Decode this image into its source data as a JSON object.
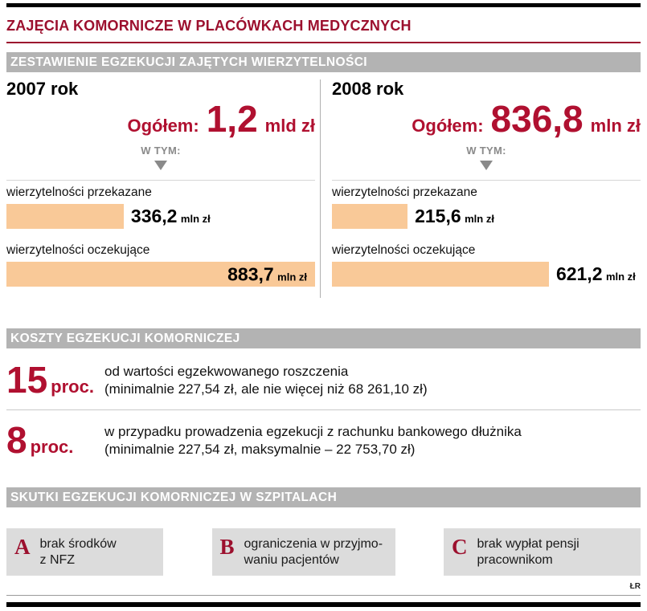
{
  "page": {
    "title": "ZAJĘCIA KOMORNICZE W PLACÓWKACH MEDYCZNYCH",
    "credit": "ŁR"
  },
  "colors": {
    "title_red": "#9c102e",
    "number_red": "#b01030",
    "banner_gray": "#b3b3b3",
    "bar_orange": "#f9c998",
    "box_gray": "#dcdcdc"
  },
  "sections": {
    "zestawienie": {
      "banner": "ZESTAWIENIE EGZEKUCJI ZAJĘTYCH WIERZYTELNOŚCI",
      "w_tym_label": "W TYM:",
      "columns": [
        {
          "year": "2007 rok",
          "total_label": "Ogółem:",
          "total_value": "1,2",
          "total_unit": "mld zł",
          "bars": [
            {
              "label": "wierzytelności przekazane",
              "value": "336,2",
              "unit": "mln zł",
              "pct": 38
            },
            {
              "label": "wierzytelności oczekujące",
              "value": "883,7",
              "unit": "mln zł",
              "pct": 100
            }
          ]
        },
        {
          "year": "2008 rok",
          "total_label": "Ogółem:",
          "total_value": "836,8",
          "total_unit": "mln zł",
          "bars": [
            {
              "label": "wierzytelności przekazane",
              "value": "215,6",
              "unit": "mln zł",
              "pct": 24.5
            },
            {
              "label": "wierzytelności oczekujące",
              "value": "621,2",
              "unit": "mln zł",
              "pct": 70.3
            }
          ]
        }
      ]
    },
    "koszty": {
      "banner": "KOSZTY EGZEKUCJI KOMORNICZEJ",
      "rows": [
        {
          "value": "15",
          "unit": "proc.",
          "line1": "od wartości egzekwowanego roszczenia",
          "line2": "(minimalnie 227,54 zł, ale nie więcej niż 68 261,10 zł)"
        },
        {
          "value": "8",
          "unit": "proc.",
          "line1": "w przypadku prowadzenia egzekucji z rachunku bankowego dłużnika",
          "line2": "(minimalnie 227,54 zł, maksymalnie – 22 753,70 zł)"
        }
      ]
    },
    "skutki": {
      "banner": "SKUTKI EGZEKUCJI KOMORNICZEJ W SZPITALACH",
      "items": [
        {
          "letter": "A",
          "text": "brak środków\nz NFZ"
        },
        {
          "letter": "B",
          "text": "ograniczenia w przyjmo-\nwaniu pacjentów"
        },
        {
          "letter": "C",
          "text": "brak wypłat pensji\npracownikom"
        }
      ]
    }
  },
  "chart_data": {
    "type": "bar",
    "title": "ZESTAWIENIE EGZEKUCJI ZAJĘTYCH WIERZYTELNOŚCI",
    "categories": [
      "wierzytelności przekazane",
      "wierzytelności oczekujące"
    ],
    "series": [
      {
        "name": "2007 rok",
        "values": [
          336.2,
          883.7
        ],
        "total_label": "Ogółem: 1,2 mld zł",
        "total_mln_zl": 1200
      },
      {
        "name": "2008 rok",
        "values": [
          215.6,
          621.2
        ],
        "total_label": "Ogółem: 836,8 mln zł",
        "total_mln_zl": 836.8
      }
    ],
    "unit": "mln zł",
    "xlim": [
      0,
      883.7
    ],
    "orientation": "horizontal",
    "legend_position": "none",
    "grid": false
  }
}
